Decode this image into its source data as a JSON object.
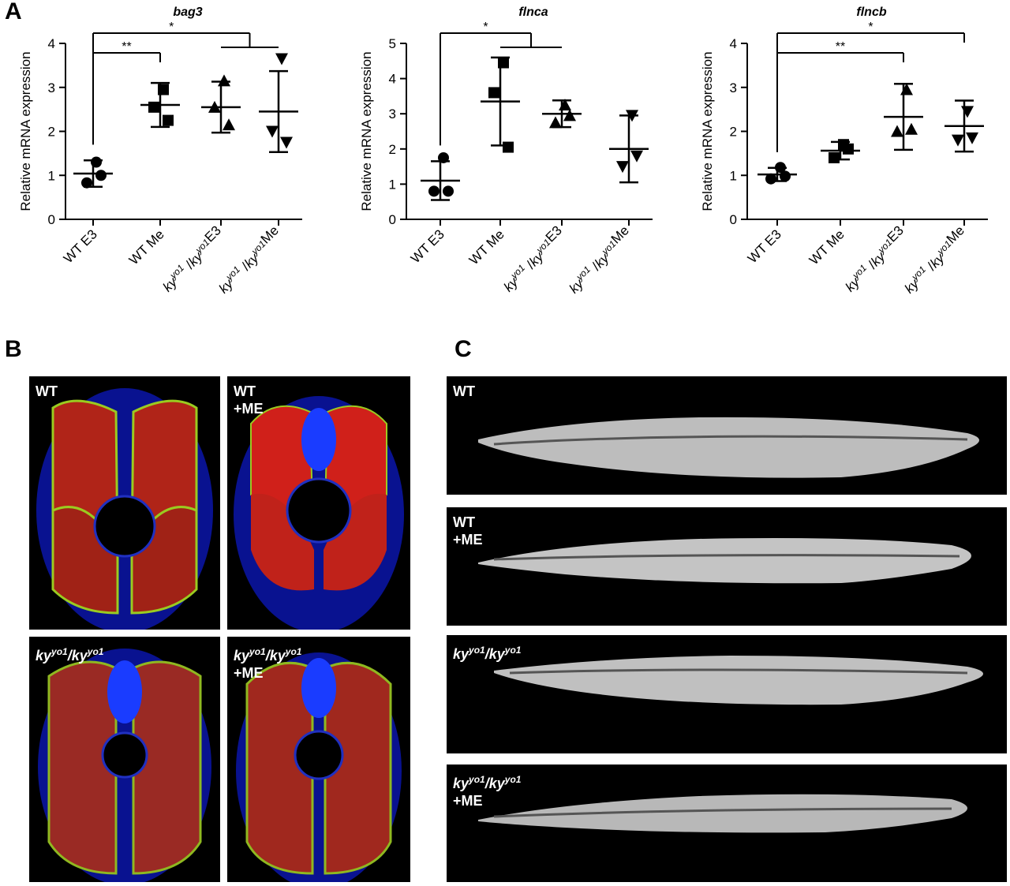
{
  "panel_labels": {
    "a": "A",
    "b": "B",
    "c": "C"
  },
  "y_axis_label": "Relative mRNA expression",
  "chart_data": [
    {
      "type": "scatter",
      "title": "bag3",
      "ylabel": "Relative mRNA expression",
      "ylim": [
        0,
        4
      ],
      "yticks": [
        0,
        1,
        2,
        3,
        4
      ],
      "categories": [
        "WT E3",
        "WT Me",
        "ky^yo1/ky^yo1 E3",
        "ky^yo1/ky^yo1 Me"
      ],
      "markers": [
        "circle",
        "square",
        "triangle-up",
        "triangle-down"
      ],
      "points": [
        [
          1.3,
          0.83,
          1.0
        ],
        [
          2.95,
          2.55,
          2.25
        ],
        [
          3.15,
          2.55,
          2.15
        ],
        [
          3.65,
          2.0,
          1.75
        ]
      ],
      "mean": [
        1.04,
        2.6,
        2.55,
        2.45
      ],
      "sd": [
        0.3,
        0.5,
        0.58,
        0.92
      ],
      "significance": [
        {
          "groups": [
            0,
            1
          ],
          "label": "**"
        },
        {
          "groups": [
            0,
            [
              2,
              3
            ]
          ],
          "label": "*"
        }
      ]
    },
    {
      "type": "scatter",
      "title": "flnca",
      "ylabel": "Relative mRNA expression",
      "ylim": [
        0,
        5
      ],
      "yticks": [
        0,
        1,
        2,
        3,
        4,
        5
      ],
      "categories": [
        "WT E3",
        "WT Me",
        "ky^yo1/ky^yo1 E3",
        "ky^yo1/ky^yo1 Me"
      ],
      "markers": [
        "circle",
        "square",
        "triangle-up",
        "triangle-down"
      ],
      "points": [
        [
          1.75,
          0.8,
          0.8
        ],
        [
          4.45,
          3.6,
          2.05
        ],
        [
          3.25,
          2.75,
          2.95
        ],
        [
          2.95,
          1.5,
          1.8
        ]
      ],
      "mean": [
        1.1,
        3.35,
        3.0,
        2.0
      ],
      "sd": [
        0.55,
        1.25,
        0.38,
        0.95
      ],
      "significance": [
        {
          "groups": [
            0,
            [
              1,
              2
            ]
          ],
          "label": "*"
        }
      ]
    },
    {
      "type": "scatter",
      "title": "flncb",
      "ylabel": "Relative mRNA expression",
      "ylim": [
        0,
        4
      ],
      "yticks": [
        0,
        1,
        2,
        3,
        4
      ],
      "categories": [
        "WT E3",
        "WT Me",
        "ky^yo1/ky^yo1 E3",
        "ky^yo1/ky^yo1 Me"
      ],
      "markers": [
        "circle",
        "square",
        "triangle-up",
        "triangle-down"
      ],
      "points": [
        [
          1.18,
          0.92,
          0.98
        ],
        [
          1.7,
          1.4,
          1.6
        ],
        [
          2.95,
          2.0,
          2.05
        ],
        [
          2.45,
          1.8,
          1.85
        ]
      ],
      "mean": [
        1.02,
        1.56,
        2.33,
        2.12
      ],
      "sd": [
        0.15,
        0.2,
        0.75,
        0.58
      ],
      "significance": [
        {
          "groups": [
            0,
            2
          ],
          "label": "**"
        },
        {
          "groups": [
            0,
            3
          ],
          "label": "*"
        }
      ]
    }
  ],
  "panel_b": {
    "tiles": [
      {
        "line1": "WT",
        "line2": ""
      },
      {
        "line1": "WT",
        "line2": "+ME"
      },
      {
        "gene": "ky",
        "allele": "yo1",
        "sep": "/",
        "line2": ""
      },
      {
        "gene": "ky",
        "allele": "yo1",
        "sep": "/",
        "line2": "+ME"
      }
    ]
  },
  "panel_c": {
    "tiles": [
      {
        "line1": "WT",
        "line2": ""
      },
      {
        "line1": "WT",
        "line2": "+ME"
      },
      {
        "gene": "ky",
        "allele": "yo1",
        "sep": "/",
        "line2": ""
      },
      {
        "gene": "ky",
        "allele": "yo1",
        "sep": "/",
        "line2": "+ME"
      }
    ]
  }
}
